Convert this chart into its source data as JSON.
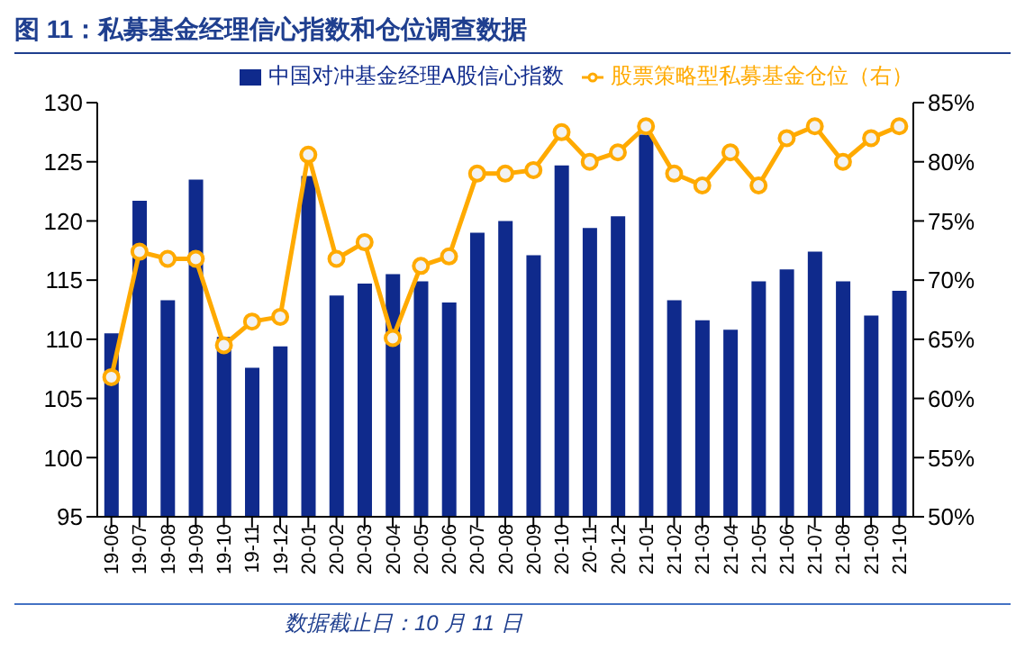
{
  "chart_data": {
    "type": "bar",
    "title": "图 11：私募基金经理信心指数和仓位调查数据",
    "annotations": [
      "数据截止日：10 月 11 日"
    ],
    "categories": [
      "19-06",
      "19-07",
      "19-08",
      "19-09",
      "19-10",
      "19-11",
      "19-12",
      "20-01",
      "20-02",
      "20-03",
      "20-04",
      "20-05",
      "20-06",
      "20-07",
      "20-08",
      "20-09",
      "20-10",
      "20-11",
      "20-12",
      "21-01",
      "21-02",
      "21-03",
      "21-04",
      "21-05",
      "21-06",
      "21-07",
      "21-08",
      "21-09",
      "21-10"
    ],
    "series": [
      {
        "name": "中国对冲基金经理A股信心指数",
        "color": "#0f2a8c",
        "values": [
          110.5,
          121.7,
          113.3,
          123.5,
          110.2,
          107.6,
          109.4,
          123.8,
          113.7,
          114.7,
          115.5,
          114.9,
          113.1,
          119.0,
          120.0,
          117.1,
          124.7,
          119.4,
          120.4,
          127.3,
          113.3,
          111.6,
          110.8,
          114.9,
          115.9,
          117.4,
          114.9,
          112.0,
          114.1
        ]
      },
      {
        "name": "股票策略型私募基金仓位（右）",
        "type": "line",
        "axis": "y2",
        "color": "#ffaa00",
        "marker": "circle",
        "values": [
          61.8,
          72.4,
          71.8,
          71.8,
          64.5,
          66.5,
          66.9,
          80.6,
          71.8,
          73.2,
          65.1,
          71.2,
          72.0,
          79.0,
          79.0,
          79.3,
          82.5,
          80.0,
          80.8,
          83.0,
          79.0,
          78.0,
          80.8,
          78.0,
          82.0,
          83.0,
          80.0,
          82.0,
          83.0
        ]
      }
    ],
    "ylim": [
      95,
      130
    ],
    "yticks": [
      95,
      100,
      105,
      110,
      115,
      120,
      125,
      130
    ],
    "y2lim": [
      50,
      85
    ],
    "y2ticks": [
      {
        "value": 50,
        "label": "50%"
      },
      {
        "value": 55,
        "label": "55%"
      },
      {
        "value": 60,
        "label": "60%"
      },
      {
        "value": 65,
        "label": "65%"
      },
      {
        "value": 70,
        "label": "70%"
      },
      {
        "value": 75,
        "label": "75%"
      },
      {
        "value": 80,
        "label": "80%"
      },
      {
        "value": 85,
        "label": "85%"
      }
    ],
    "grid": false,
    "legend": "top right"
  }
}
